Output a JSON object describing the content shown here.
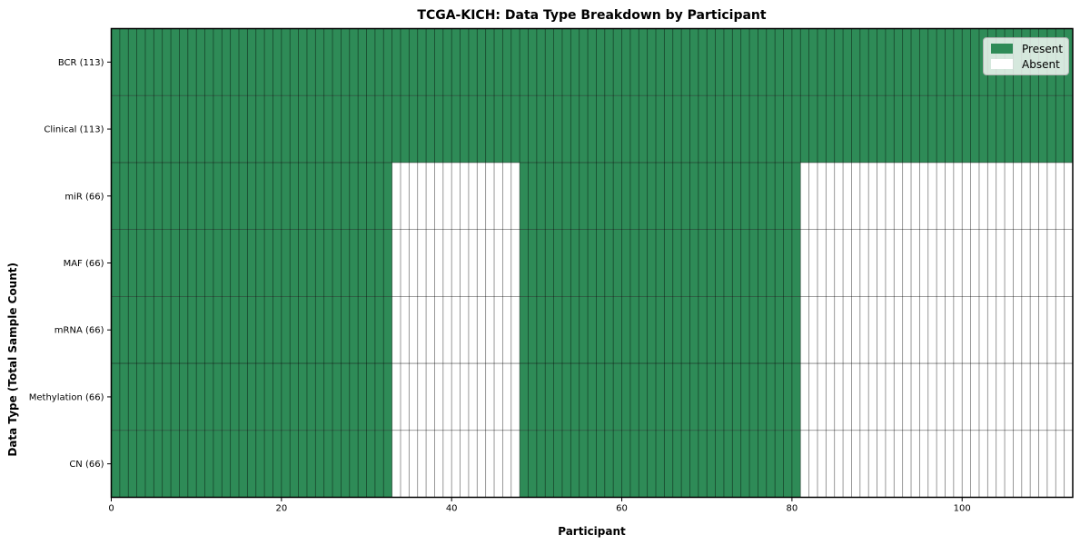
{
  "figure": {
    "background": "#ffffff"
  },
  "chart_data": {
    "type": "heatmap",
    "title": "TCGA-KICH: Data Type Breakdown by Participant",
    "xlabel": "Participant",
    "ylabel": "Data Type (Total Sample Count)",
    "xlim": [
      0,
      113
    ],
    "n_participants": 113,
    "x_ticks": [
      0,
      20,
      40,
      60,
      80,
      100
    ],
    "x_tick_labels": [
      "0",
      "20",
      "40",
      "60",
      "80",
      "100"
    ],
    "categories": [
      "BCR (113)",
      "Clinical (113)",
      "miR (66)",
      "MAF (66)",
      "mRNA (66)",
      "Methylation (66)",
      "CN (66)"
    ],
    "rows": [
      {
        "label": "BCR (113)",
        "data_type": "BCR",
        "present_count": 113,
        "present_segments": [
          [
            0,
            113
          ]
        ]
      },
      {
        "label": "Clinical (113)",
        "data_type": "Clinical",
        "present_count": 113,
        "present_segments": [
          [
            0,
            113
          ]
        ]
      },
      {
        "label": "miR (66)",
        "data_type": "miR",
        "present_count": 66,
        "present_segments": [
          [
            0,
            33
          ],
          [
            48,
            81
          ]
        ]
      },
      {
        "label": "MAF (66)",
        "data_type": "MAF",
        "present_count": 66,
        "present_segments": [
          [
            0,
            33
          ],
          [
            48,
            81
          ]
        ]
      },
      {
        "label": "mRNA (66)",
        "data_type": "mRNA",
        "present_count": 66,
        "present_segments": [
          [
            0,
            33
          ],
          [
            48,
            81
          ]
        ]
      },
      {
        "label": "Methylation (66)",
        "data_type": "Methylation",
        "present_count": 66,
        "present_segments": [
          [
            0,
            33
          ],
          [
            48,
            81
          ]
        ]
      },
      {
        "label": "CN (66)",
        "data_type": "CN",
        "present_count": 66,
        "present_segments": [
          [
            0,
            33
          ],
          [
            48,
            81
          ]
        ]
      }
    ],
    "legend": {
      "position": "upper right",
      "entries": [
        {
          "label": "Present",
          "color": "#2E8B57"
        },
        {
          "label": "Absent",
          "color": "#FFFFFF"
        }
      ]
    },
    "colors": {
      "present": "#2E8B57",
      "absent": "#FFFFFF",
      "cell_edge": "rgba(0,0,0,0.5)",
      "spine": "#000000",
      "tick": "#000000",
      "text": "#000000"
    },
    "grid": "cell-borders"
  }
}
